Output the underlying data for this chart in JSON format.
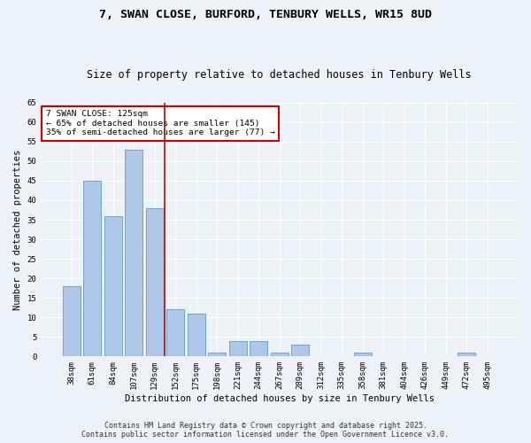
{
  "title": "7, SWAN CLOSE, BURFORD, TENBURY WELLS, WR15 8UD",
  "subtitle": "Size of property relative to detached houses in Tenbury Wells",
  "xlabel": "Distribution of detached houses by size in Tenbury Wells",
  "ylabel": "Number of detached properties",
  "categories": [
    "38sqm",
    "61sqm",
    "84sqm",
    "107sqm",
    "129sqm",
    "152sqm",
    "175sqm",
    "198sqm",
    "221sqm",
    "244sqm",
    "267sqm",
    "289sqm",
    "312sqm",
    "335sqm",
    "358sqm",
    "381sqm",
    "404sqm",
    "426sqm",
    "449sqm",
    "472sqm",
    "495sqm"
  ],
  "values": [
    18,
    45,
    36,
    53,
    38,
    12,
    11,
    1,
    4,
    4,
    1,
    3,
    0,
    0,
    1,
    0,
    0,
    0,
    0,
    1,
    0
  ],
  "bar_color": "#aec6e8",
  "bar_edge_color": "#5b9bd5",
  "ylim": [
    0,
    65
  ],
  "yticks": [
    0,
    5,
    10,
    15,
    20,
    25,
    30,
    35,
    40,
    45,
    50,
    55,
    60,
    65
  ],
  "property_line_x": 4.5,
  "property_line_color": "#cc0000",
  "annotation_text": "7 SWAN CLOSE: 125sqm\n← 65% of detached houses are smaller (145)\n35% of semi-detached houses are larger (77) →",
  "annotation_box_color": "#cc0000",
  "footer_line1": "Contains HM Land Registry data © Crown copyright and database right 2025.",
  "footer_line2": "Contains public sector information licensed under the Open Government Licence v3.0.",
  "bg_color": "#eef2f8",
  "plot_bg_color": "#eef2f8",
  "grid_color": "#ffffff",
  "title_fontsize": 9.5,
  "subtitle_fontsize": 8.5,
  "axis_label_fontsize": 7.5,
  "tick_fontsize": 6.5,
  "annotation_fontsize": 6.8,
  "footer_fontsize": 6.0
}
